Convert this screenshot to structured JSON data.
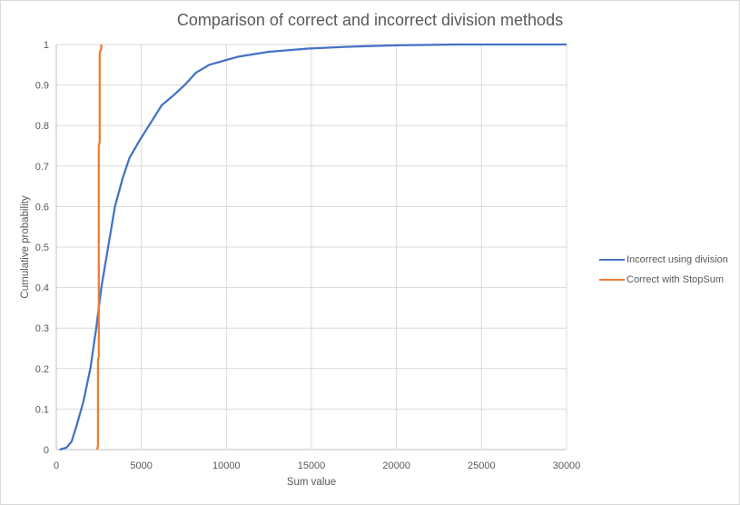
{
  "chart_data": {
    "type": "line",
    "title": "Comparison of correct and incorrect division methods",
    "xlabel": "Sum value",
    "ylabel": "Cumulative probability",
    "xlim": [
      0,
      30000
    ],
    "ylim": [
      0,
      1
    ],
    "x_ticks": [
      "0",
      "5000",
      "10000",
      "15000",
      "20000",
      "25000",
      "30000"
    ],
    "y_ticks": [
      "0",
      "0.1",
      "0.2",
      "0.3",
      "0.4",
      "0.5",
      "0.6",
      "0.7",
      "0.8",
      "0.9",
      "1"
    ],
    "grid": true,
    "legend_position": "right",
    "series": [
      {
        "name": "Incorrect using division",
        "color": "#4472c4",
        "points": [
          [
            200,
            0
          ],
          [
            600,
            0.005
          ],
          [
            900,
            0.02
          ],
          [
            1200,
            0.06
          ],
          [
            1600,
            0.12
          ],
          [
            2000,
            0.2
          ],
          [
            2350,
            0.3
          ],
          [
            2650,
            0.4
          ],
          [
            3050,
            0.5
          ],
          [
            3450,
            0.6
          ],
          [
            3900,
            0.67
          ],
          [
            4300,
            0.72
          ],
          [
            4850,
            0.76
          ],
          [
            5450,
            0.8
          ],
          [
            6200,
            0.85
          ],
          [
            6900,
            0.875
          ],
          [
            7550,
            0.9
          ],
          [
            8200,
            0.93
          ],
          [
            9000,
            0.95
          ],
          [
            10700,
            0.97
          ],
          [
            12500,
            0.982
          ],
          [
            14800,
            0.99
          ],
          [
            17500,
            0.995
          ],
          [
            20000,
            0.998
          ],
          [
            23400,
            1.0
          ],
          [
            30000,
            1.0
          ]
        ]
      },
      {
        "name": "Correct with StopSum",
        "color": "#ed7d31",
        "points": [
          [
            2400,
            0
          ],
          [
            2450,
            0.01
          ],
          [
            2450,
            0.22
          ],
          [
            2500,
            0.23
          ],
          [
            2500,
            0.75
          ],
          [
            2550,
            0.76
          ],
          [
            2550,
            0.98
          ],
          [
            2650,
            0.99
          ],
          [
            2650,
            1.0
          ]
        ]
      }
    ]
  }
}
